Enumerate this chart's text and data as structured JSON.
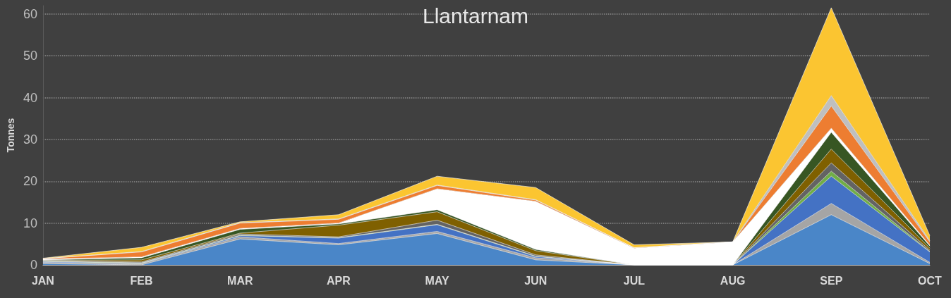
{
  "chart_data": {
    "type": "area",
    "title": "Llantarnam",
    "ylabel": "Tonnes",
    "stacked": true,
    "categories": [
      "JAN",
      "FEB",
      "MAR",
      "APR",
      "MAY",
      "JUN",
      "JUL",
      "AUG",
      "SEP",
      "OCT"
    ],
    "ylim": [
      0,
      62
    ],
    "yticks": [
      0,
      10,
      20,
      30,
      40,
      50,
      60
    ],
    "grid": "y",
    "marker": "none",
    "series": [
      {
        "color": "#4a86c8",
        "values": [
          0.3,
          0,
          6.2,
          4.8,
          7.5,
          1.2,
          0,
          0,
          12,
          0.3
        ]
      },
      {
        "color": "#a5a5a5",
        "values": [
          0.3,
          0.3,
          0.5,
          0.3,
          0.5,
          0.5,
          0,
          0,
          2.7,
          0.3
        ]
      },
      {
        "color": "#4472c4",
        "values": [
          0.2,
          0.1,
          0.3,
          1.3,
          1.6,
          0.3,
          0,
          0,
          6.5,
          2.5
        ]
      },
      {
        "color": "#70ad47",
        "values": [
          0.1,
          0.1,
          0.1,
          0.1,
          0.1,
          0.1,
          0,
          0,
          1.2,
          0.1
        ]
      },
      {
        "color": "#636363",
        "values": [
          0.1,
          0.2,
          0.3,
          0.2,
          1.0,
          0.3,
          0,
          0,
          2.0,
          0.3
        ]
      },
      {
        "color": "#7f6000",
        "values": [
          0.1,
          0.5,
          0.2,
          2.8,
          2.0,
          1.0,
          0,
          0,
          3.3,
          0.5
        ]
      },
      {
        "color": "#375623",
        "values": [
          0.1,
          0.5,
          0.9,
          0.3,
          0.5,
          0.3,
          0,
          0,
          4.0,
          0.5
        ]
      },
      {
        "color": "#ffffff",
        "values": [
          0.2,
          0.2,
          0.2,
          0.2,
          5.0,
          11.5,
          4.0,
          5.5,
          1.0,
          0.2
        ]
      },
      {
        "color": "#ed7d31",
        "values": [
          0.1,
          1.2,
          1.3,
          0.9,
          0.8,
          0.3,
          0.1,
          0,
          5.3,
          0.8
        ]
      },
      {
        "color": "#bfbfbf",
        "values": [
          0,
          0.1,
          0.1,
          0.1,
          0.1,
          0.1,
          0,
          0,
          2.5,
          0.3
        ]
      },
      {
        "color": "#fbc531",
        "values": [
          0.1,
          1.0,
          0.2,
          1.0,
          2.1,
          2.9,
          0.7,
          0,
          21,
          1.2
        ]
      }
    ]
  }
}
